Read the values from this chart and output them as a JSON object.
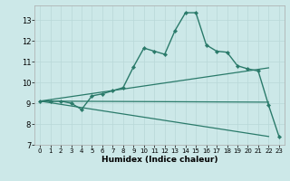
{
  "title": "",
  "xlabel": "Humidex (Indice chaleur)",
  "bg_color": "#cce8e8",
  "grid_color": "#b8d8d8",
  "line_color": "#2a7a6a",
  "xlim": [
    -0.5,
    23.5
  ],
  "ylim": [
    7,
    13.7
  ],
  "yticks": [
    7,
    8,
    9,
    10,
    11,
    12,
    13
  ],
  "xticks": [
    0,
    1,
    2,
    3,
    4,
    5,
    6,
    7,
    8,
    9,
    10,
    11,
    12,
    13,
    14,
    15,
    16,
    17,
    18,
    19,
    20,
    21,
    22,
    23
  ],
  "main_line_x": [
    0,
    1,
    2,
    3,
    4,
    5,
    6,
    7,
    8,
    9,
    10,
    11,
    12,
    13,
    14,
    15,
    16,
    17,
    18,
    19,
    20,
    21,
    22,
    23
  ],
  "main_line_y": [
    9.1,
    9.1,
    9.1,
    9.0,
    8.7,
    9.35,
    9.45,
    9.6,
    9.75,
    10.75,
    11.65,
    11.5,
    11.35,
    12.5,
    13.35,
    13.35,
    11.8,
    11.5,
    11.45,
    10.8,
    10.65,
    10.55,
    8.9,
    7.4
  ],
  "upper_line_x": [
    0,
    22
  ],
  "upper_line_y": [
    9.1,
    10.7
  ],
  "lower_line_x": [
    0,
    22
  ],
  "lower_line_y": [
    9.1,
    7.4
  ],
  "mid_line_x": [
    0,
    22
  ],
  "mid_line_y": [
    9.1,
    9.05
  ]
}
